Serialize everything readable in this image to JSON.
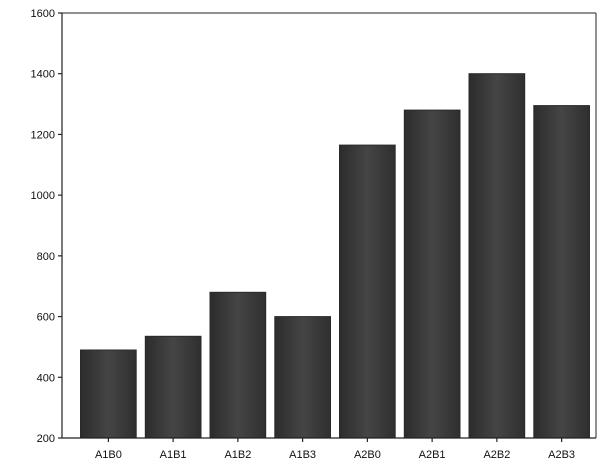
{
  "chart_data": {
    "type": "bar",
    "categories": [
      "A1B0",
      "A1B1",
      "A1B2",
      "A1B3",
      "A2B0",
      "A2B1",
      "A2B2",
      "A2B3"
    ],
    "values": [
      490,
      535,
      680,
      600,
      1165,
      1280,
      1400,
      1295
    ],
    "title": "",
    "xlabel": "",
    "ylabel": "",
    "ylim": [
      200,
      1600
    ],
    "yticks": [
      200,
      400,
      600,
      800,
      1000,
      1200,
      1400,
      1600
    ],
    "grid": false,
    "bar_color": "#3a3a3a"
  }
}
